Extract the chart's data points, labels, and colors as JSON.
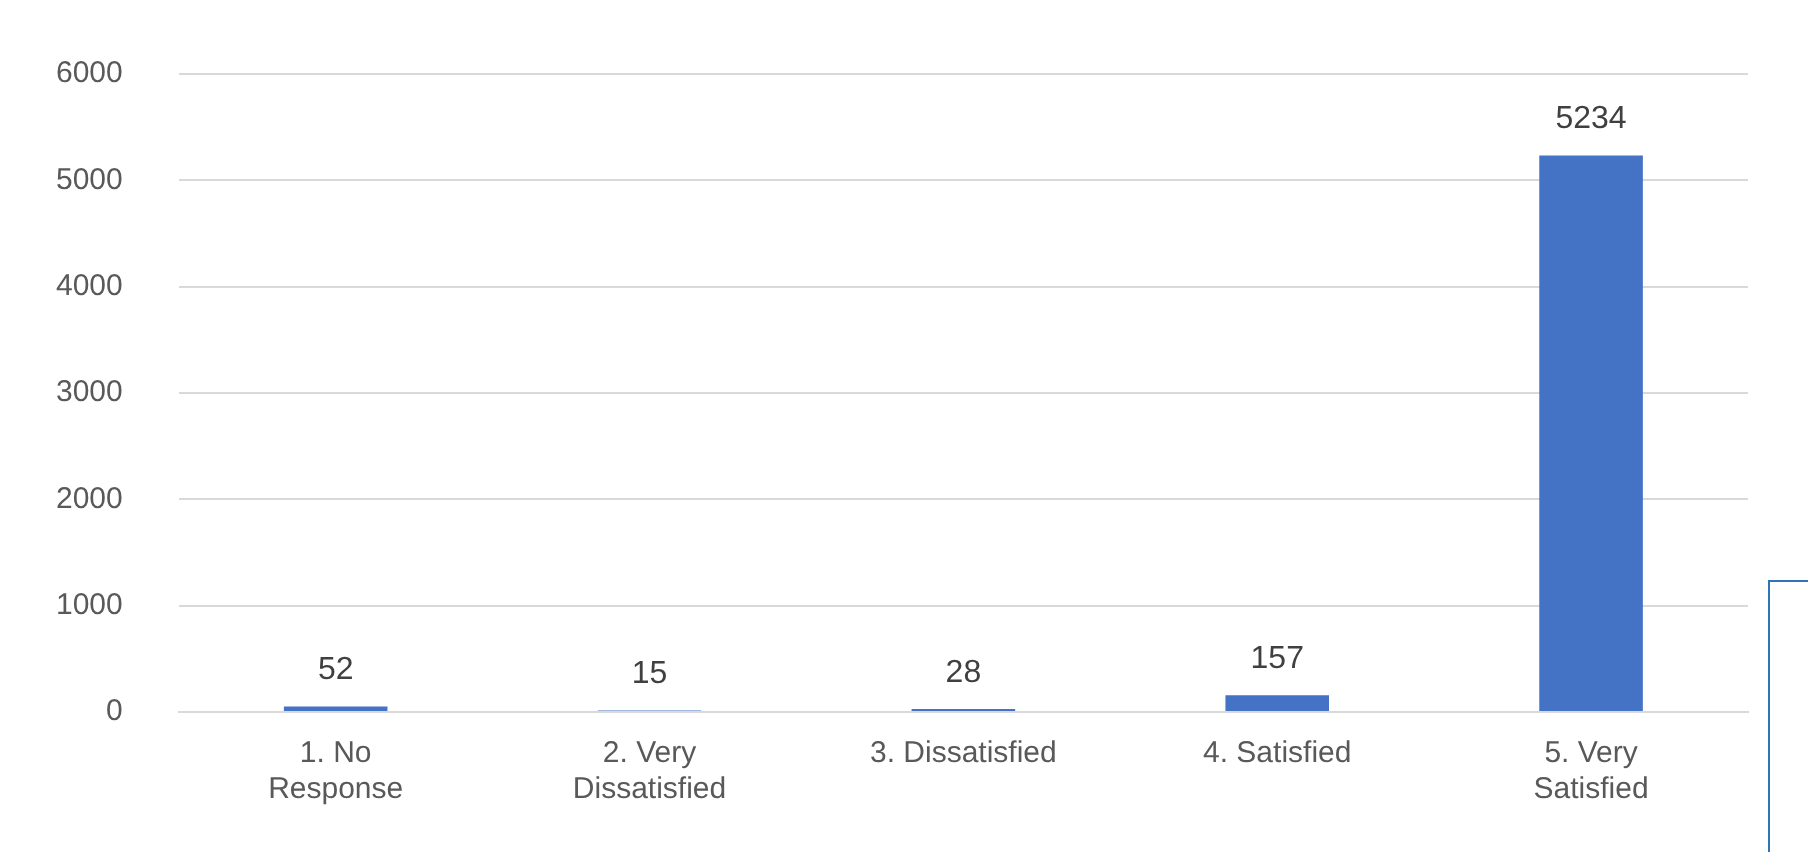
{
  "chart_data": {
    "type": "bar",
    "categories": [
      "1. No Response",
      "2. Very Dissatisfied",
      "3. Dissatisfied",
      "4. Satisfied",
      "5. Very Satisfied"
    ],
    "values": [
      52,
      15,
      28,
      157,
      5234
    ],
    "color": "#4472c4",
    "ylim": [
      0,
      6000
    ],
    "yticks": [
      0,
      1000,
      2000,
      3000,
      4000,
      5000,
      6000
    ],
    "grid": "y",
    "data_labels": true
  }
}
